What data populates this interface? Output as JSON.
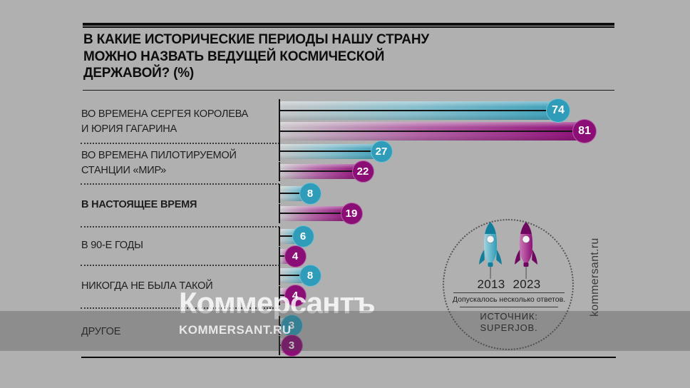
{
  "title": "В КАКИЕ ИСТОРИЧЕСКИЕ ПЕРИОДЫ НАШУ СТРАНУ\nМОЖНО НАЗВАТЬ ВЕДУЩЕЙ КОСМИЧЕСКОЙ\nДЕРЖАВОЙ? (%)",
  "chart_data": {
    "type": "bar",
    "orientation": "horizontal",
    "title": "В какие исторические периоды нашу страну можно назвать ведущей космической державой? (%)",
    "categories": [
      "ВО ВРЕМЕНА СЕРГЕЯ КОРОЛЕВА И ЮРИЯ ГАГАРИНА",
      "ВО ВРЕМЕНА ПИЛОТИРУЕМОЙ СТАНЦИИ «МИР»",
      "В НАСТОЯЩЕЕ ВРЕМЯ",
      "В 90-Е ГОДЫ",
      "НИКОГДА НЕ БЫЛА ТАКОЙ",
      "ДРУГОЕ"
    ],
    "series": [
      {
        "name": "2013",
        "color": "#2f9db9",
        "values": [
          74,
          27,
          8,
          6,
          8,
          3
        ]
      },
      {
        "name": "2023",
        "color": "#8e1078",
        "values": [
          81,
          22,
          19,
          4,
          4,
          3
        ]
      }
    ],
    "value_suffix": "%",
    "xlim": [
      0,
      85
    ],
    "grid": false,
    "legend_position": "right-circle",
    "note": "Допускалось несколько ответов.",
    "source": "ИСТОЧНИК: SUPERJOB."
  },
  "rows": [
    {
      "label": "ВО ВРЕМЕНА СЕРГЕЯ КОРОЛЕВА\nИ ЮРИЯ ГАГАРИНА",
      "bold": false,
      "v2013": 74,
      "v2023": 81
    },
    {
      "label": "ВО ВРЕМЕНА ПИЛОТИРУЕМОЙ\nСТАНЦИИ «МИР»",
      "bold": false,
      "v2013": 27,
      "v2023": 22
    },
    {
      "label": "В НАСТОЯЩЕЕ ВРЕМЯ",
      "bold": true,
      "v2013": 8,
      "v2023": 19
    },
    {
      "label": "В 90-Е ГОДЫ",
      "bold": false,
      "v2013": 6,
      "v2023": 4
    },
    {
      "label": "НИКОГДА НЕ БЫЛА ТАКОЙ",
      "bold": false,
      "v2013": 8,
      "v2023": 4
    },
    {
      "label": "ДРУГОЕ",
      "bold": false,
      "v2013": 3,
      "v2023": 3
    }
  ],
  "legend": {
    "year_2013": "2013",
    "year_2023": "2023",
    "note": "Допускалось несколько ответов.",
    "source": "ИСТОЧНИК:\nSUPERJOB.",
    "rocket_2013_icon": "rocket-teal",
    "rocket_2023_icon": "rocket-magenta"
  },
  "watermarks": {
    "main": "Коммерсантъ",
    "site": "KOMMERSANT.RU",
    "vertical": "kommersant.ru"
  },
  "colors": {
    "background": "#b0b0b0",
    "series_2013": "#2f9db9",
    "series_2023": "#8e1078",
    "bar_start_gray": "#c7c8ca",
    "dim_band": "rgba(70,70,70,0.33)"
  }
}
